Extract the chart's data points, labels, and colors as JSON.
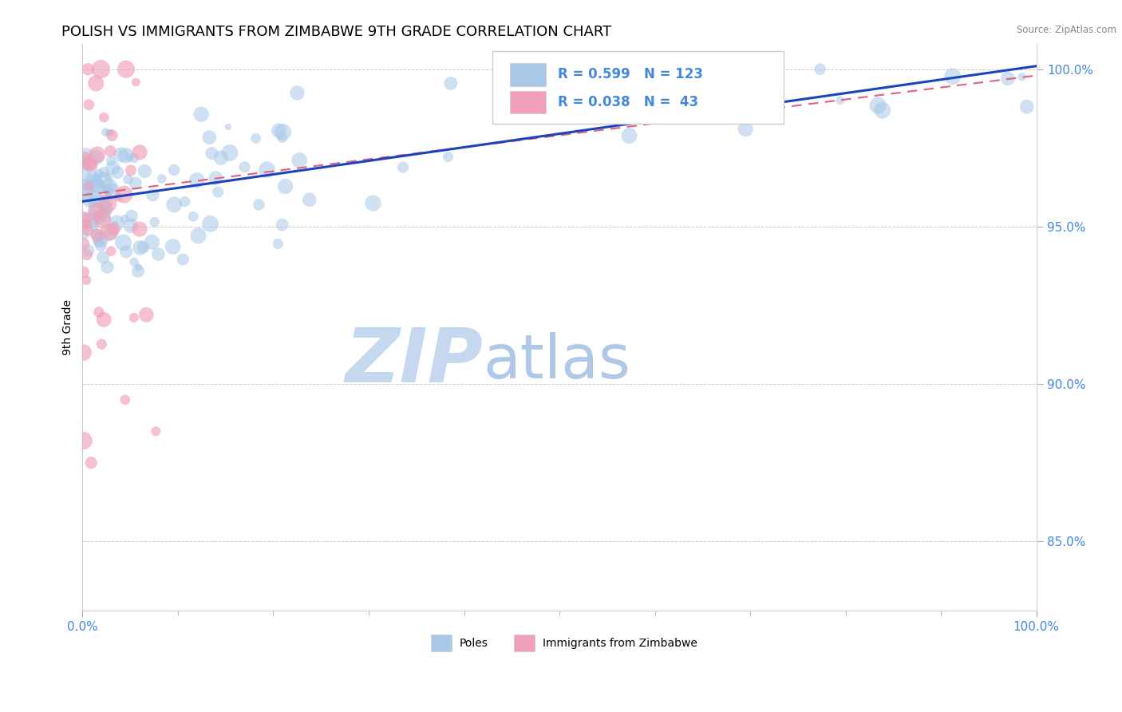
{
  "title": "POLISH VS IMMIGRANTS FROM ZIMBABWE 9TH GRADE CORRELATION CHART",
  "source_text": "Source: ZipAtlas.com",
  "ylabel": "9th Grade",
  "xlim": [
    0.0,
    1.0
  ],
  "ylim": [
    0.828,
    1.008
  ],
  "yticks": [
    0.85,
    0.9,
    0.95,
    1.0
  ],
  "ytick_labels": [
    "85.0%",
    "90.0%",
    "95.0%",
    "100.0%"
  ],
  "legend_r_blue": "R = 0.599",
  "legend_n_blue": "N = 123",
  "legend_r_pink": "R = 0.038",
  "legend_n_pink": "N =  43",
  "blue_color": "#a8c8e8",
  "pink_color": "#f0a0b8",
  "trend_blue": "#1a44bb",
  "trend_pink": "#e06080",
  "watermark_zip": "ZIP",
  "watermark_atlas": "atlas",
  "watermark_color_zip": "#c5d8f0",
  "watermark_color_atlas": "#b0c8e8",
  "title_fontsize": 13,
  "tick_fontsize": 11,
  "tick_color": "#4488dd",
  "grid_color": "#cccccc",
  "blue_trend_start_x": 0.0,
  "blue_trend_start_y": 0.958,
  "blue_trend_end_x": 1.0,
  "blue_trend_end_y": 1.001,
  "pink_trend_start_x": 0.0,
  "pink_trend_start_y": 0.96,
  "pink_trend_end_x": 1.0,
  "pink_trend_end_y": 0.998
}
